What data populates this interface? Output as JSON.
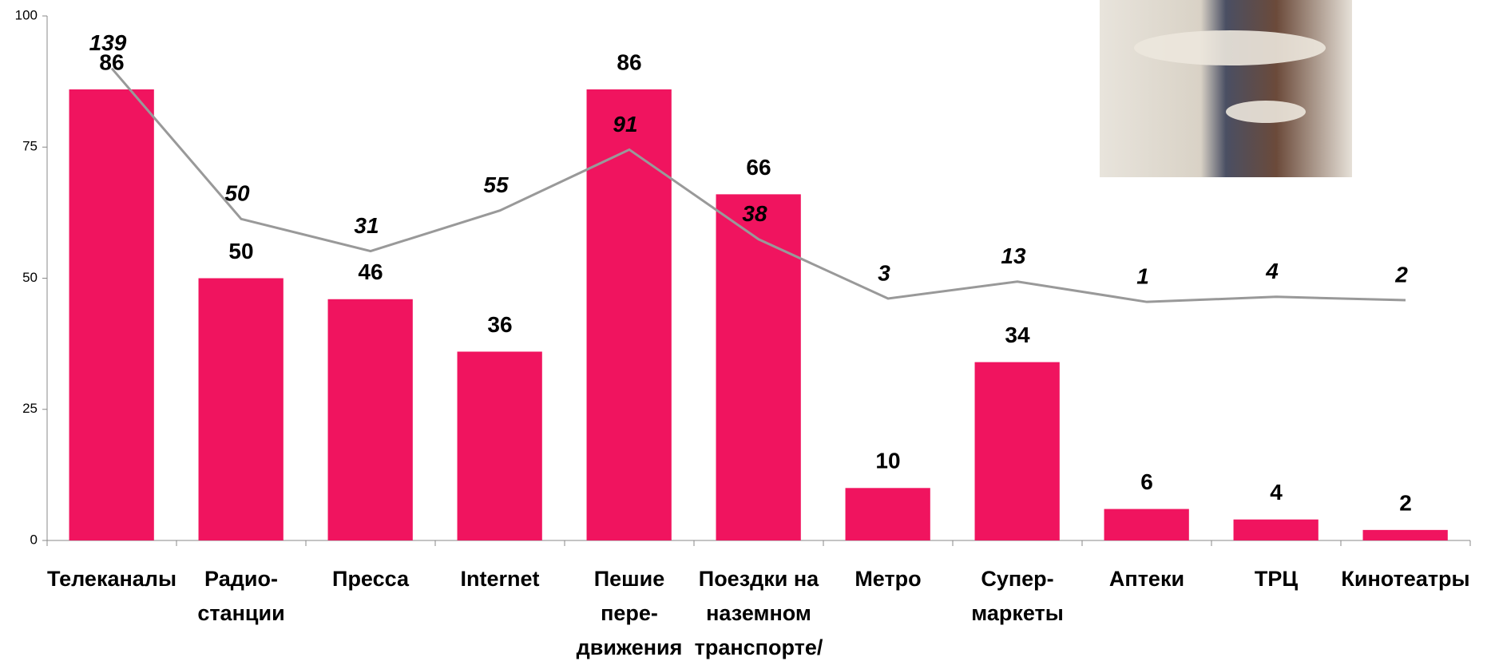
{
  "chart_data": {
    "type": "bar",
    "categories": [
      "Телеканалы",
      "Радио-\nстанции",
      "Пресса",
      "Internet",
      "Пешие\nпере-\nдвижения",
      "Поездки на\nназемном\nтранспорте/",
      "Метро",
      "Супер-\nмаркеты",
      "Аптеки",
      "ТРЦ",
      "Кинотеатры"
    ],
    "series": [
      {
        "type": "bar",
        "color": "#f0145f",
        "values": [
          86,
          50,
          46,
          36,
          86,
          66,
          10,
          34,
          6,
          4,
          2
        ]
      },
      {
        "type": "line",
        "axis": "y2",
        "color": "#999999",
        "values": [
          139,
          50,
          31,
          55,
          91,
          38,
          3,
          13,
          1,
          4,
          2
        ]
      }
    ],
    "ylim": [
      0,
      100
    ],
    "yticks": [
      0,
      25,
      50,
      75,
      100
    ],
    "y2lim": [
      -140,
      170
    ]
  }
}
